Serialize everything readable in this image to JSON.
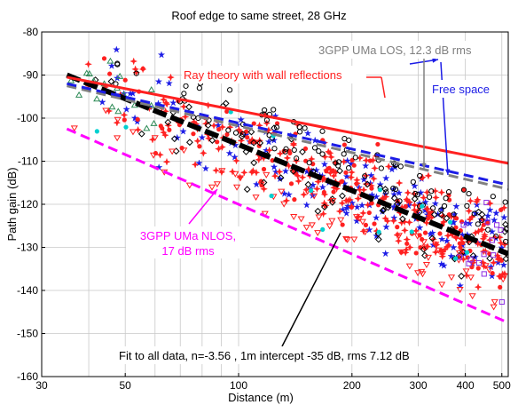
{
  "chart_data": {
    "type": "scatter",
    "title": "Roof edge to same street, 28 GHz",
    "xlabel": "Distance (m)",
    "ylabel": "Path gain (dB)",
    "xscale": "log",
    "xlim": [
      30,
      520
    ],
    "ylim": [
      -160,
      -80
    ],
    "xticks": [
      30,
      50,
      100,
      200,
      300,
      400,
      500
    ],
    "yticks": [
      -160,
      -150,
      -140,
      -130,
      -120,
      -110,
      -100,
      -90,
      -80
    ],
    "grid": true,
    "colors": {
      "ray": "#ff2020",
      "los": "#808080",
      "free": "#1c1ce6",
      "nlos": "#ff00ff",
      "fit": "#000000",
      "pointer": "#000000"
    },
    "lines": [
      {
        "id": "ray",
        "x": [
          35,
          520
        ],
        "y": [
          -90.5,
          -110.5
        ],
        "style": "solid"
      },
      {
        "id": "los",
        "x": [
          35,
          520
        ],
        "y": [
          -92.5,
          -116.5
        ],
        "style": "dashed"
      },
      {
        "id": "free",
        "x": [
          35,
          520
        ],
        "y": [
          -92.0,
          -115.5
        ],
        "style": "dashed"
      },
      {
        "id": "fit",
        "x": [
          35,
          520
        ],
        "y": [
          -90.0,
          -131.5
        ],
        "style": "dashed-thick"
      },
      {
        "id": "nlos",
        "x": [
          35,
          520
        ],
        "y": [
          -102.5,
          -147.5
        ],
        "style": "dashed"
      }
    ],
    "annotations": [
      {
        "id": "ray",
        "text": "Ray theory with wall reflections"
      },
      {
        "id": "los",
        "text": "3GPP UMa LOS, 12.3 dB rms"
      },
      {
        "id": "free",
        "text": "Free space"
      },
      {
        "id": "nlos1",
        "text": "3GPP UMa NLOS,"
      },
      {
        "id": "nlos2",
        "text": "17 dB rms"
      },
      {
        "id": "fit",
        "text": "Fit to all data, n=-3.56 , 1m intercept -35 dB, rms 7.12 dB"
      }
    ],
    "scatter_series": [
      {
        "marker": "star",
        "color": "#1c1ce6",
        "count": 160,
        "seed": 11
      },
      {
        "marker": "asterisk",
        "color": "#ff2020",
        "count": 260,
        "seed": 23
      },
      {
        "marker": "dot",
        "color": "#ff2020",
        "count": 120,
        "seed": 37
      },
      {
        "marker": "circle",
        "color": "#000000",
        "count": 90,
        "seed": 41
      },
      {
        "marker": "diamond",
        "color": "#000000",
        "count": 70,
        "seed": 53
      },
      {
        "marker": "triangle-down",
        "color": "#ff2020",
        "count": 70,
        "seed": 67
      },
      {
        "marker": "triangle-up",
        "color": "#2e8b57",
        "count": 18,
        "seed": 71
      },
      {
        "marker": "square",
        "color": "#8a2be2",
        "count": 14,
        "seed": 83
      },
      {
        "marker": "dot",
        "color": "#00d0d0",
        "count": 14,
        "seed": 97
      }
    ]
  }
}
